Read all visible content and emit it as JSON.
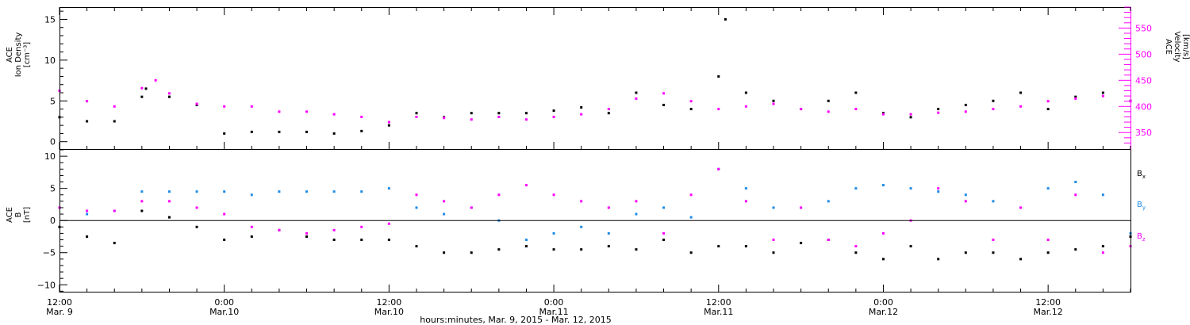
{
  "colors": {
    "background": "#ffffff",
    "axis": "#000000",
    "density": "#000000",
    "velocity": "#ff00ff",
    "bx": "#000000",
    "by": "#1e8be6",
    "bz": "#ff00ff"
  },
  "chart_data": [
    {
      "type": "scatter",
      "panel": "top",
      "ylabel_left": [
        "ACE",
        "Ion Density",
        "[cm⁻³]"
      ],
      "ylabel_right": [
        "ACE",
        "Velocity",
        "[km/s]"
      ],
      "ylim_left": [
        -1,
        16.5
      ],
      "ylim_right": [
        317,
        590
      ],
      "yticks_left": [
        0,
        5,
        10,
        15
      ],
      "yticks_right": [
        350,
        400,
        450,
        500,
        550
      ],
      "yticks_left_labels": [
        "0",
        "5",
        "10",
        "15"
      ],
      "yticks_right_labels": [
        "350",
        "400",
        "450",
        "500",
        "550"
      ],
      "x_units": "hours since Mar. 9, 2015 00:00",
      "xlim": [
        12,
        90
      ],
      "series": [
        {
          "axis": "left",
          "color": "#000000",
          "x": [
            12,
            14,
            16,
            18,
            18.3,
            20,
            22,
            24,
            26,
            28,
            30,
            32,
            34,
            36,
            38,
            40,
            42,
            44,
            46,
            48,
            50,
            52,
            54,
            56,
            58,
            60,
            60.5,
            62,
            64,
            66,
            68,
            70,
            72,
            74,
            76,
            78,
            80,
            82,
            84,
            86,
            88,
            90
          ],
          "y": [
            3,
            2.5,
            2.5,
            5.5,
            6.5,
            5.5,
            4.5,
            1,
            1.2,
            1.2,
            1.2,
            1,
            1.3,
            2,
            3.5,
            3,
            3.5,
            3.5,
            3.5,
            3.8,
            4.2,
            3.5,
            6,
            4.5,
            4,
            8,
            15,
            6,
            5,
            4,
            5,
            6,
            3.5,
            3,
            4,
            4.5,
            5,
            6,
            4,
            5.5,
            6,
            5
          ]
        },
        {
          "axis": "right",
          "color": "#ff00ff",
          "x": [
            12,
            14,
            16,
            18,
            19,
            20,
            22,
            24,
            26,
            28,
            30,
            32,
            34,
            36,
            38,
            40,
            42,
            44,
            46,
            48,
            50,
            52,
            54,
            56,
            58,
            60,
            62,
            64,
            66,
            68,
            70,
            72,
            74,
            76,
            78,
            80,
            82,
            84,
            86,
            88,
            90
          ],
          "y": [
            430,
            410,
            400,
            435,
            450,
            425,
            405,
            400,
            400,
            390,
            390,
            385,
            380,
            370,
            380,
            378,
            375,
            380,
            375,
            380,
            385,
            395,
            415,
            425,
            410,
            395,
            400,
            405,
            395,
            390,
            395,
            385,
            385,
            388,
            390,
            395,
            400,
            410,
            415,
            420,
            410
          ]
        }
      ]
    },
    {
      "type": "scatter",
      "panel": "bottom",
      "ylabel": [
        "ACE",
        "B",
        "[nT]"
      ],
      "ylim": [
        -11.2,
        11
      ],
      "yticks": [
        -10,
        -5,
        0,
        5,
        10
      ],
      "ytick_labels": [
        "−10",
        "−5",
        "0",
        "5",
        "10"
      ],
      "zero_line": true,
      "xlim": [
        12,
        90
      ],
      "legend_placement": "right",
      "series": [
        {
          "name": "Bx",
          "color": "#000000",
          "x": [
            12,
            14,
            16,
            18,
            20,
            22,
            24,
            26,
            28,
            30,
            32,
            34,
            36,
            38,
            40,
            42,
            44,
            46,
            48,
            50,
            52,
            54,
            56,
            58,
            60,
            62,
            64,
            66,
            68,
            70,
            72,
            74,
            76,
            78,
            80,
            82,
            84,
            86,
            88,
            90
          ],
          "y": [
            -1,
            -2.5,
            -3.5,
            1.5,
            0.5,
            -1,
            -3,
            -2.5,
            -1.5,
            -2.5,
            -3,
            -3,
            -3,
            -4,
            -5,
            -5,
            -4.5,
            -4,
            -4.5,
            -4.5,
            -4,
            -4.5,
            -3,
            -5,
            -4,
            -4,
            -5,
            -3.5,
            -3,
            -5,
            -6,
            -4,
            -6,
            -5,
            -5,
            -6,
            -5,
            -4.5,
            -4,
            -2.5
          ]
        },
        {
          "name": "By",
          "color": "#1e8be6",
          "x": [
            12,
            14,
            16,
            18,
            20,
            22,
            24,
            26,
            28,
            30,
            32,
            34,
            36,
            38,
            40,
            42,
            44,
            46,
            48,
            50,
            52,
            54,
            56,
            58,
            60,
            62,
            64,
            66,
            68,
            70,
            72,
            74,
            76,
            78,
            80,
            82,
            84,
            86,
            88,
            90
          ],
          "y": [
            2,
            1,
            1.5,
            4.5,
            4.5,
            4.5,
            4.5,
            4,
            4.5,
            4.5,
            4.5,
            4.5,
            5,
            2,
            1,
            2,
            0,
            -3,
            -2,
            -1,
            -2,
            1,
            2,
            0.5,
            8,
            5,
            2,
            2,
            3,
            5,
            5.5,
            5,
            4.5,
            4,
            3,
            2,
            5,
            6,
            4,
            -2
          ]
        },
        {
          "name": "Bz",
          "color": "#ff00ff",
          "x": [
            12,
            14,
            16,
            18,
            20,
            22,
            24,
            26,
            28,
            30,
            32,
            34,
            36,
            38,
            40,
            42,
            44,
            46,
            48,
            50,
            52,
            54,
            56,
            58,
            60,
            62,
            64,
            66,
            68,
            70,
            72,
            74,
            76,
            78,
            80,
            82,
            84,
            86,
            88,
            90
          ],
          "y": [
            2,
            1.5,
            1.5,
            3,
            3,
            2,
            1,
            -1,
            -1.5,
            -2,
            -1.5,
            -1,
            -0.5,
            4,
            3,
            2,
            4,
            5.5,
            4,
            3,
            2,
            3,
            -2,
            4,
            8,
            3,
            -3,
            2,
            -3,
            -4,
            -2,
            0,
            5,
            3,
            -3,
            2,
            -3,
            4,
            -5,
            -4
          ]
        }
      ],
      "legend": [
        {
          "label": "B",
          "sub": "x",
          "color": "#000000"
        },
        {
          "label": "B",
          "sub": "y",
          "color": "#1e8be6"
        },
        {
          "label": "B",
          "sub": "z",
          "color": "#ff00ff"
        }
      ]
    }
  ],
  "x_axis": {
    "ticks": [
      {
        "hour": 12,
        "time": "12:00",
        "date": "Mar. 9"
      },
      {
        "hour": 24,
        "time": "0:00",
        "date": "Mar.10"
      },
      {
        "hour": 36,
        "time": "12:00",
        "date": "Mar.10"
      },
      {
        "hour": 48,
        "time": "0:00",
        "date": "Mar.11"
      },
      {
        "hour": 60,
        "time": "12:00",
        "date": "Mar.11"
      },
      {
        "hour": 72,
        "time": "0:00",
        "date": "Mar.12"
      },
      {
        "hour": 84,
        "time": "12:00",
        "date": "Mar.12"
      }
    ],
    "label": "hours:minutes, Mar.  9, 2015 - Mar. 12, 2015"
  }
}
